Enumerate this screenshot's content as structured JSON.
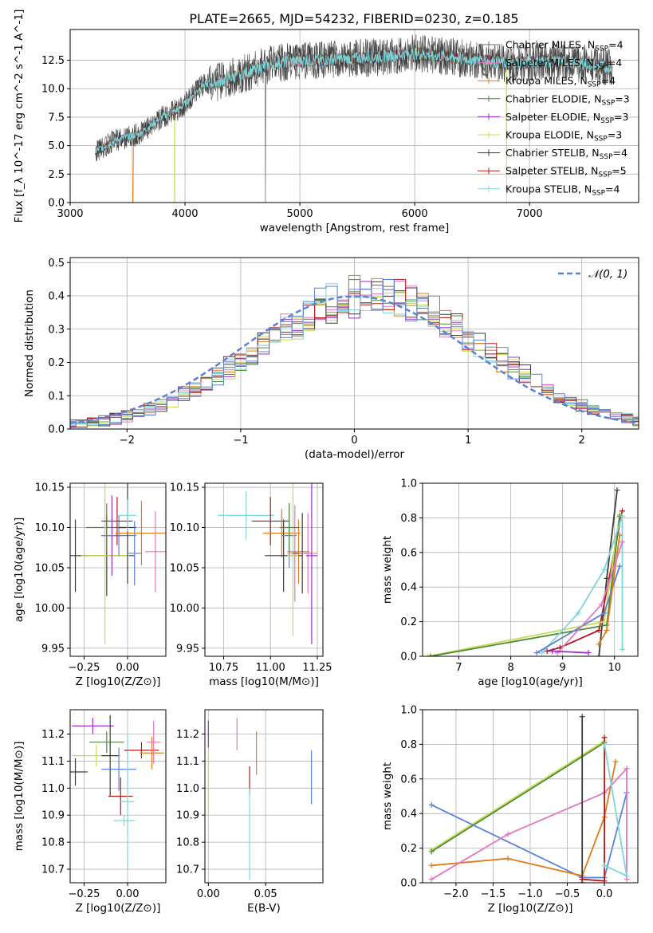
{
  "title": "PLATE=2665, MJD=54232, FIBERID=0230, z=0.185",
  "colors": {
    "grey": "#6b6b6b",
    "pink": "#e377c2",
    "orange": "#e07b1a",
    "green": "#4d8a3b",
    "purple": "#9b30c9",
    "yellowgreen": "#c9dc52",
    "dark": "#3b3b3b",
    "red": "#b11a1a",
    "cyan": "#7fd6da",
    "blue": "#5a82d6"
  },
  "chart_data": [
    {
      "id": "spectrum",
      "type": "line",
      "xlabel": "wavelength [Angstrom, rest frame]",
      "ylabel": "Flux [f_λ 10^-17 erg cm^-2 s^-1 A^-1]",
      "xlim": [
        3000,
        7950
      ],
      "ylim": [
        0,
        15.2
      ],
      "xticks": [
        "3000",
        "4000",
        "5000",
        "6000",
        "7000"
      ],
      "yticks": [
        "0.0",
        "2.5",
        "5.0",
        "7.5",
        "10.0",
        "12.5"
      ],
      "x_range": [
        3220,
        7720
      ],
      "continuum": [
        [
          3220,
          4.5
        ],
        [
          3400,
          5.5
        ],
        [
          3600,
          6.0
        ],
        [
          3800,
          7.5
        ],
        [
          3950,
          8.2
        ],
        [
          4050,
          9.2
        ],
        [
          4150,
          10.3
        ],
        [
          4300,
          10.6
        ],
        [
          4500,
          11.3
        ],
        [
          4800,
          12.3
        ],
        [
          5100,
          12.5
        ],
        [
          5400,
          12.6
        ],
        [
          5700,
          12.8
        ],
        [
          6000,
          13.1
        ],
        [
          6300,
          12.8
        ],
        [
          6600,
          12.5
        ],
        [
          6800,
          12.2
        ],
        [
          7100,
          12.4
        ],
        [
          7400,
          12.3
        ],
        [
          7720,
          11.8
        ]
      ],
      "dips": [
        [
          3545,
          "orange"
        ],
        [
          3910,
          "yellowgreen"
        ],
        [
          4700,
          "grey"
        ],
        [
          6800,
          "yellowgreen"
        ]
      ],
      "legend": [
        {
          "label": "Chabrier MILES, N",
          "sub": "SSP",
          "eq": "=4",
          "color": "grey"
        },
        {
          "label": "Salpeter MILES, N",
          "sub": "SSP",
          "eq": "=4",
          "color": "pink"
        },
        {
          "label": "Kroupa MILES, N",
          "sub": "SSP",
          "eq": "=4",
          "color": "orange"
        },
        {
          "label": "Chabrier ELODIE, N",
          "sub": "SSP",
          "eq": "=3",
          "color": "green"
        },
        {
          "label": "Salpeter ELODIE, N",
          "sub": "SSP",
          "eq": "=3",
          "color": "purple"
        },
        {
          "label": "Kroupa ELODIE, N",
          "sub": "SSP",
          "eq": "=3",
          "color": "yellowgreen"
        },
        {
          "label": "Chabrier STELIB, N",
          "sub": "SSP",
          "eq": "=4",
          "color": "dark"
        },
        {
          "label": "Salpeter STELIB, N",
          "sub": "SSP",
          "eq": "=5",
          "color": "red"
        },
        {
          "label": "Kroupa STELIB, N",
          "sub": "SSP",
          "eq": "=4",
          "color": "cyan"
        }
      ]
    },
    {
      "id": "residuals",
      "type": "histogram",
      "xlabel": "(data-model)/error",
      "ylabel": "Normed distribution",
      "xlim": [
        -2.5,
        2.5
      ],
      "ylim": [
        0,
        0.515
      ],
      "xticks": [
        "−2",
        "−1",
        "0",
        "1",
        "2"
      ],
      "yticks": [
        "0.0",
        "0.1",
        "0.2",
        "0.3",
        "0.4",
        "0.5"
      ],
      "bin_width": 0.1,
      "curve_label": "𝒩(0, 1)",
      "series_colors": [
        "grey",
        "pink",
        "orange",
        "green",
        "purple",
        "yellowgreen",
        "dark",
        "red",
        "cyan",
        "blue"
      ]
    },
    {
      "id": "age_vs_Z",
      "type": "errorbar",
      "xlabel": "Z [log10(Z/Z⊙)]",
      "ylabel": "age [log10(age/yr)]",
      "xlim": [
        -0.33,
        0.22
      ],
      "ylim": [
        9.94,
        10.155
      ],
      "xticks": [
        "−0.25",
        "0.00"
      ],
      "yticks": [
        "9.95",
        "10.00",
        "10.05",
        "10.10",
        "10.15"
      ],
      "points": [
        {
          "x": -0.3,
          "y": 10.065,
          "xerr": 0.07,
          "yerr": 0.045,
          "color": "dark"
        },
        {
          "x": -0.12,
          "y": 10.065,
          "xerr": 0.16,
          "yerr": 0.05,
          "color": "dark"
        },
        {
          "x": -0.12,
          "y": 10.1,
          "xerr": 0.12,
          "yerr": 0.03,
          "color": "green"
        },
        {
          "x": -0.13,
          "y": 10.065,
          "xerr": 0.14,
          "yerr": 0.11,
          "color": "yellowgreen"
        },
        {
          "x": -0.09,
          "y": 10.09,
          "xerr": 0.06,
          "yerr": 0.05,
          "color": "purple"
        },
        {
          "x": -0.05,
          "y": 10.09,
          "xerr": 0.1,
          "yerr": 0.025,
          "color": "blue"
        },
        {
          "x": -0.06,
          "y": 10.108,
          "xerr": 0.09,
          "yerr": 0.03,
          "color": "red"
        },
        {
          "x": 0.0,
          "y": 10.1,
          "xerr": 0.05,
          "yerr": 0.07,
          "color": "dark"
        },
        {
          "x": 0.0,
          "y": 10.115,
          "xerr": 0.05,
          "yerr": 0.02,
          "color": "cyan"
        },
        {
          "x": 0.04,
          "y": 10.068,
          "xerr": 0.04,
          "yerr": 0.04,
          "color": "blue"
        },
        {
          "x": 0.08,
          "y": 10.093,
          "xerr": 0.15,
          "yerr": 0.04,
          "color": "orange"
        },
        {
          "x": 0.16,
          "y": 10.07,
          "xerr": 0.06,
          "yerr": 0.05,
          "color": "pink"
        }
      ]
    },
    {
      "id": "age_vs_mass",
      "type": "errorbar",
      "xlabel": "mass [log10(M/M⊙)]",
      "ylabel": "",
      "xlim": [
        10.65,
        11.28
      ],
      "ylim": [
        9.94,
        10.155
      ],
      "xticks": [
        "10.75",
        "11.00",
        "11.25"
      ],
      "yticks": [
        "9.95",
        "10.00",
        "10.05",
        "10.10",
        "10.15"
      ],
      "points": [
        {
          "x": 10.87,
          "y": 10.115,
          "xerr": 0.15,
          "yerr": 0.03,
          "color": "cyan"
        },
        {
          "x": 11.0,
          "y": 10.108,
          "xerr": 0.1,
          "yerr": 0.03,
          "color": "red"
        },
        {
          "x": 11.06,
          "y": 10.093,
          "xerr": 0.1,
          "yerr": 0.03,
          "color": "orange"
        },
        {
          "x": 11.07,
          "y": 10.065,
          "xerr": 0.1,
          "yerr": 0.045,
          "color": "dark"
        },
        {
          "x": 11.1,
          "y": 10.09,
          "xerr": 0.04,
          "yerr": 0.04,
          "color": "blue"
        },
        {
          "x": 11.12,
          "y": 10.065,
          "xerr": 0.03,
          "yerr": 0.1,
          "color": "yellowgreen"
        },
        {
          "x": 11.13,
          "y": 10.068,
          "xerr": 0.04,
          "yerr": 0.06,
          "color": "pink"
        },
        {
          "x": 11.15,
          "y": 10.07,
          "xerr": 0.06,
          "yerr": 0.04,
          "color": "orange"
        },
        {
          "x": 11.17,
          "y": 10.068,
          "xerr": 0.05,
          "yerr": 0.05,
          "color": "dark"
        },
        {
          "x": 11.2,
          "y": 10.068,
          "xerr": 0.05,
          "yerr": 0.05,
          "color": "pink"
        },
        {
          "x": 11.22,
          "y": 10.065,
          "xerr": 0.03,
          "yerr": 0.11,
          "color": "purple"
        },
        {
          "x": 11.1,
          "y": 10.1,
          "xerr": 0.05,
          "yerr": 0.03,
          "color": "green"
        }
      ]
    },
    {
      "id": "massweight_vs_age",
      "type": "line",
      "xlabel": "age  [log10(age/yr)]",
      "ylabel": "mass weight",
      "xlim": [
        6.3,
        10.45
      ],
      "ylim": [
        0,
        1.0
      ],
      "xticks": [
        "7",
        "8",
        "9",
        "10"
      ],
      "yticks": [
        "0.0",
        "0.2",
        "0.4",
        "0.6",
        "0.8",
        "1.0"
      ],
      "series": [
        {
          "color": "dark",
          "pts": [
            [
              9.7,
              0.0
            ],
            [
              9.85,
              0.45
            ],
            [
              10.05,
              0.96
            ]
          ]
        },
        {
          "color": "red",
          "pts": [
            [
              8.7,
              0.03
            ],
            [
              8.95,
              0.05
            ],
            [
              9.7,
              0.15
            ],
            [
              10.15,
              0.84
            ]
          ]
        },
        {
          "color": "yellowgreen",
          "pts": [
            [
              6.4,
              0.0
            ],
            [
              9.8,
              0.2
            ],
            [
              10.1,
              0.82
            ]
          ]
        },
        {
          "color": "green",
          "pts": [
            [
              6.45,
              0.0
            ],
            [
              9.85,
              0.18
            ],
            [
              10.1,
              0.81
            ]
          ]
        },
        {
          "color": "cyan",
          "pts": [
            [
              8.6,
              0.02
            ],
            [
              9.3,
              0.25
            ],
            [
              9.8,
              0.5
            ],
            [
              10.15,
              0.81
            ],
            [
              10.15,
              0.04
            ]
          ]
        },
        {
          "color": "blue",
          "pts": [
            [
              8.5,
              0.02
            ],
            [
              9.8,
              0.25
            ],
            [
              10.1,
              0.52
            ]
          ]
        },
        {
          "color": "orange",
          "pts": [
            [
              9.7,
              0.07
            ],
            [
              9.85,
              0.15
            ],
            [
              10.1,
              0.7
            ]
          ]
        },
        {
          "color": "pink",
          "pts": [
            [
              8.9,
              0.02
            ],
            [
              9.75,
              0.3
            ],
            [
              10.15,
              0.66
            ]
          ]
        },
        {
          "color": "purple",
          "pts": [
            [
              8.8,
              0.03
            ],
            [
              9.5,
              0.02
            ]
          ]
        }
      ]
    },
    {
      "id": "mass_vs_Z",
      "type": "errorbar",
      "xlabel": "Z [log10(Z/Z⊙)]",
      "ylabel": "mass [log10(M/M⊙)]",
      "xlim": [
        -0.33,
        0.22
      ],
      "ylim": [
        10.65,
        11.29
      ],
      "xticks": [
        "−0.25",
        "0.00"
      ],
      "yticks": [
        "10.7",
        "10.8",
        "10.9",
        "11.0",
        "11.1",
        "11.2"
      ],
      "points": [
        {
          "x": -0.3,
          "y": 11.06,
          "xerr": 0.07,
          "yerr": 0.05,
          "color": "dark"
        },
        {
          "x": -0.2,
          "y": 11.23,
          "xerr": 0.12,
          "yerr": 0.03,
          "color": "purple"
        },
        {
          "x": -0.18,
          "y": 11.12,
          "xerr": 0.14,
          "yerr": 0.04,
          "color": "yellowgreen"
        },
        {
          "x": -0.12,
          "y": 11.17,
          "xerr": 0.1,
          "yerr": 0.04,
          "color": "green"
        },
        {
          "x": -0.1,
          "y": 11.12,
          "xerr": 0.05,
          "yerr": 0.15,
          "color": "dark"
        },
        {
          "x": -0.05,
          "y": 11.07,
          "xerr": 0.1,
          "yerr": 0.08,
          "color": "blue"
        },
        {
          "x": -0.04,
          "y": 10.97,
          "xerr": 0.07,
          "yerr": 0.07,
          "color": "red"
        },
        {
          "x": -0.02,
          "y": 10.88,
          "xerr": 0.06,
          "yerr": 0.02,
          "color": "cyan"
        },
        {
          "x": 0.0,
          "y": 10.95,
          "xerr": 0.04,
          "yerr": 0.25,
          "color": "cyan"
        },
        {
          "x": 0.08,
          "y": 11.14,
          "xerr": 0.1,
          "yerr": 0.03,
          "color": "red"
        },
        {
          "x": 0.14,
          "y": 11.13,
          "xerr": 0.07,
          "yerr": 0.06,
          "color": "orange"
        },
        {
          "x": 0.15,
          "y": 11.17,
          "xerr": 0.04,
          "yerr": 0.08,
          "color": "pink"
        }
      ]
    },
    {
      "id": "mass_vs_EBV",
      "type": "errorbar",
      "xlabel": "E(B-V)",
      "ylabel": "",
      "xlim": [
        -0.003,
        0.1
      ],
      "ylim": [
        10.65,
        11.29
      ],
      "xticks": [
        "0.00",
        "0.05"
      ],
      "yticks": [
        "10.7",
        "10.8",
        "10.9",
        "11.0",
        "11.1",
        "11.2"
      ],
      "points": [
        {
          "x": 0.0,
          "y": 11.2,
          "xerr": 0.0,
          "yerr": 0.05,
          "color": "purple"
        },
        {
          "x": 0.0,
          "y": 11.02,
          "xerr": 0.0,
          "yerr": 0.12,
          "color": "yellowgreen"
        },
        {
          "x": 0.025,
          "y": 11.2,
          "xerr": 0.0,
          "yerr": 0.06,
          "color": "pink"
        },
        {
          "x": 0.042,
          "y": 11.13,
          "xerr": 0.0,
          "yerr": 0.08,
          "color": "orange"
        },
        {
          "x": 0.036,
          "y": 11.03,
          "xerr": 0.0,
          "yerr": 0.05,
          "color": "red"
        },
        {
          "x": 0.036,
          "y": 10.83,
          "xerr": 0.0,
          "yerr": 0.17,
          "color": "cyan"
        },
        {
          "x": 0.09,
          "y": 11.04,
          "xerr": 0.0,
          "yerr": 0.1,
          "color": "blue"
        }
      ]
    },
    {
      "id": "massweight_vs_Z",
      "type": "line",
      "xlabel": "Z [log10(Z/Z⊙)]",
      "ylabel": "mass weight",
      "xlim": [
        -2.45,
        0.45
      ],
      "ylim": [
        0,
        1.0
      ],
      "xticks": [
        "−2.0",
        "−1.5",
        "−1.0",
        "−0.5",
        "0.0"
      ],
      "yticks": [
        "0.0",
        "0.2",
        "0.4",
        "0.6",
        "0.8",
        "1.0"
      ],
      "series": [
        {
          "color": "yellowgreen",
          "pts": [
            [
              -2.33,
              0.19
            ],
            [
              0.0,
              0.82
            ]
          ]
        },
        {
          "color": "green",
          "pts": [
            [
              -2.33,
              0.18
            ],
            [
              0.0,
              0.81
            ]
          ]
        },
        {
          "color": "blue",
          "pts": [
            [
              -2.33,
              0.45
            ],
            [
              -0.3,
              0.03
            ],
            [
              0.0,
              0.03
            ],
            [
              0.3,
              0.52
            ]
          ]
        },
        {
          "color": "orange",
          "pts": [
            [
              -2.33,
              0.1
            ],
            [
              -1.3,
              0.14
            ],
            [
              -0.3,
              0.04
            ],
            [
              0.0,
              0.38
            ],
            [
              0.15,
              0.7
            ]
          ]
        },
        {
          "color": "pink",
          "pts": [
            [
              -2.33,
              0.02
            ],
            [
              -1.3,
              0.28
            ],
            [
              0.0,
              0.52
            ],
            [
              0.3,
              0.66
            ],
            [
              0.3,
              0.02
            ]
          ]
        },
        {
          "color": "dark",
          "pts": [
            [
              -0.3,
              0.0
            ],
            [
              -0.3,
              0.96
            ],
            [
              -0.3,
              0.0
            ]
          ]
        },
        {
          "color": "red",
          "pts": [
            [
              -0.3,
              0.02
            ],
            [
              0.0,
              0.01
            ],
            [
              0.0,
              0.84
            ]
          ]
        },
        {
          "color": "cyan",
          "pts": [
            [
              0.0,
              0.8
            ],
            [
              0.3,
              0.04
            ],
            [
              0.0,
              0.1
            ]
          ]
        }
      ]
    }
  ]
}
